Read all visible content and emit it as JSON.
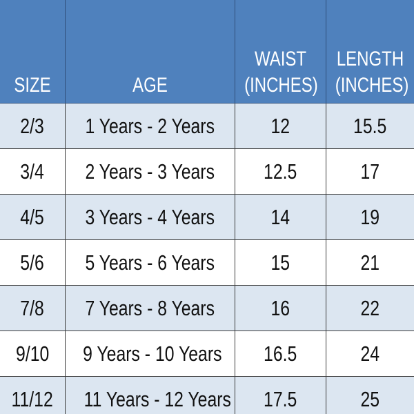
{
  "table": {
    "header": [
      [
        "SIZE"
      ],
      [
        "AGE"
      ],
      [
        "WAIST",
        "(INCHES)"
      ],
      [
        "LENGTH",
        "(INCHES)"
      ]
    ],
    "rows": [
      [
        "2/3",
        "1 Years - 2 Years",
        12,
        15.5
      ],
      [
        "3/4",
        "2 Years - 3 Years",
        12.5,
        17
      ],
      [
        "4/5",
        "3 Years - 4 Years",
        14,
        19
      ],
      [
        "5/6",
        "5 Years - 6 Years",
        15,
        21
      ],
      [
        "7/8",
        "7 Years - 8 Years",
        16,
        22
      ],
      [
        "9/10",
        "9 Years - 10 Years",
        16.5,
        24
      ],
      [
        "11/12",
        "11 Years - 12 Years",
        17.5,
        25
      ]
    ]
  }
}
